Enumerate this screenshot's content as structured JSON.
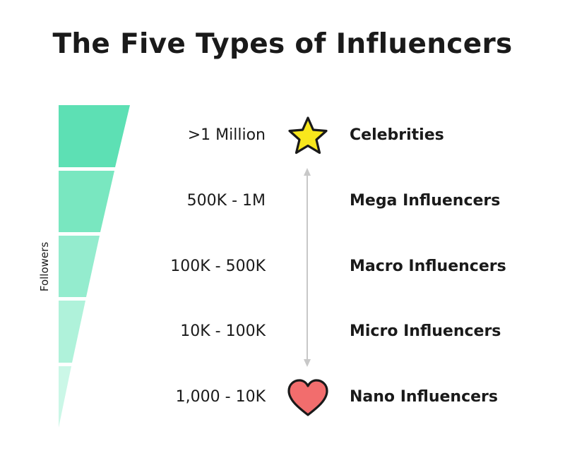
{
  "title": "The Five Types of Influencers",
  "axis_label": "Followers",
  "tiers": [
    {
      "range": ">1 Million",
      "type": "Celebrities",
      "color": "#5de0b4"
    },
    {
      "range": "500K - 1M",
      "type": "Mega Influencers",
      "color": "#79e7c0"
    },
    {
      "range": "100K - 500K",
      "type": "Macro Influencers",
      "color": "#94ecce"
    },
    {
      "range": "10K - 100K",
      "type": "Micro Influencers",
      "color": "#aff2da"
    },
    {
      "range": "1,000 - 10K",
      "type": "Nano Influencers",
      "color": "#cbf7e7"
    }
  ],
  "icons": {
    "top": "star-icon",
    "bottom": "heart-icon",
    "star_color": "#f8e71c",
    "heart_color": "#f26d6d"
  },
  "connector_color": "#c8c8c8"
}
